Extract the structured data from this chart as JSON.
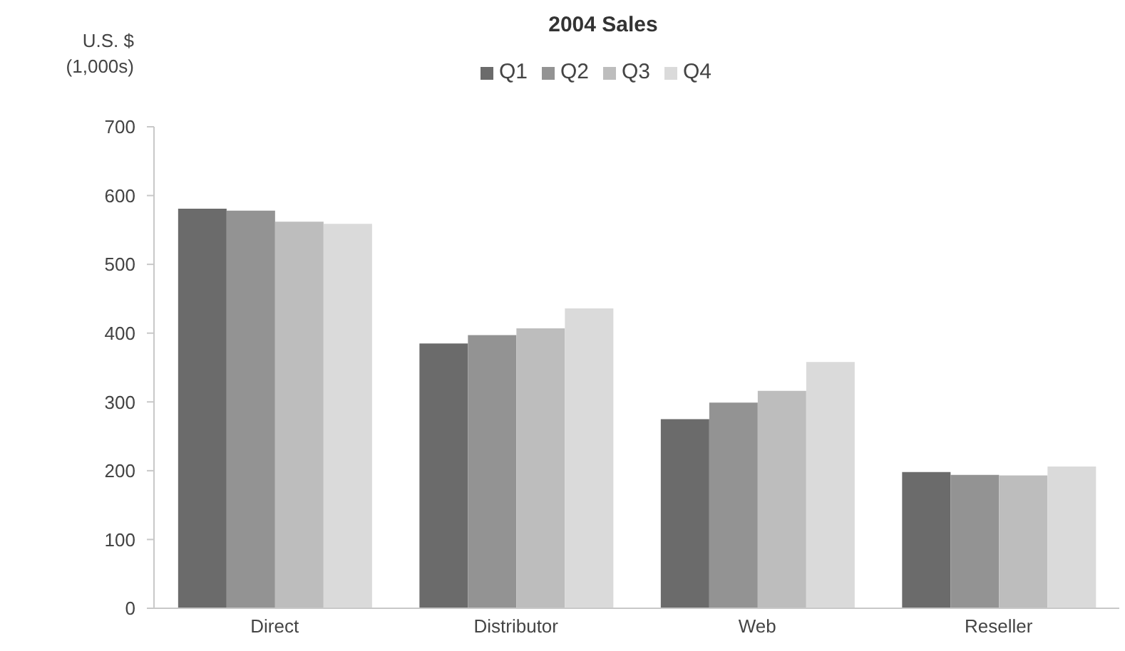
{
  "chart_data": {
    "type": "bar",
    "title": "2004 Sales",
    "ylabel": "U.S. $\n(1,000s)",
    "categories": [
      "Direct",
      "Distributor",
      "Web",
      "Reseller"
    ],
    "series": [
      {
        "name": "Q1",
        "color": "#6b6b6b",
        "values": [
          581,
          385,
          275,
          198
        ]
      },
      {
        "name": "Q2",
        "color": "#939393",
        "values": [
          578,
          397,
          299,
          194
        ]
      },
      {
        "name": "Q3",
        "color": "#bdbdbd",
        "values": [
          562,
          407,
          316,
          193
        ]
      },
      {
        "name": "Q4",
        "color": "#dadada",
        "values": [
          559,
          436,
          358,
          206
        ]
      }
    ],
    "ylim": [
      0,
      700
    ],
    "yticks": [
      0,
      100,
      200,
      300,
      400,
      500,
      600,
      700
    ],
    "legend": "top"
  }
}
